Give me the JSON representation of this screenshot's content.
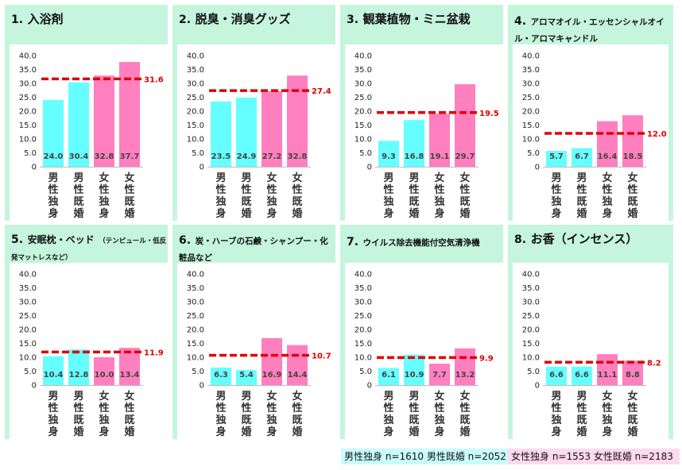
{
  "chart_data": [
    {
      "type": "bar",
      "number": "1.",
      "title": "入浴剤",
      "title_extra": "",
      "categories": [
        "男性独身",
        "男性既婚",
        "女性独身",
        "女性既婚"
      ],
      "values": [
        24.0,
        30.4,
        32.8,
        37.7
      ],
      "average": 31.6,
      "ylim": [
        0,
        40
      ],
      "yticks": [
        "40.0",
        "35.0",
        "30.0",
        "25.0",
        "20.0",
        "15.0",
        "10.0",
        "5.0",
        "0"
      ]
    },
    {
      "type": "bar",
      "number": "2.",
      "title": "脱臭・消臭グッズ",
      "title_extra": "",
      "categories": [
        "男性独身",
        "男性既婚",
        "女性独身",
        "女性既婚"
      ],
      "values": [
        23.5,
        24.9,
        27.2,
        32.8
      ],
      "average": 27.4,
      "ylim": [
        0,
        40
      ],
      "yticks": [
        "40.0",
        "35.0",
        "30.0",
        "25.0",
        "20.0",
        "15.0",
        "10.0",
        "5.0",
        "0"
      ]
    },
    {
      "type": "bar",
      "number": "3.",
      "title": "観葉植物・ミニ盆栽",
      "title_extra": "",
      "categories": [
        "男性独身",
        "男性既婚",
        "女性独身",
        "女性既婚"
      ],
      "values": [
        9.3,
        16.8,
        19.1,
        29.7
      ],
      "average": 19.5,
      "ylim": [
        0,
        40
      ],
      "yticks": [
        "40.0",
        "35.0",
        "30.0",
        "25.0",
        "20.0",
        "15.0",
        "10.0",
        "5.0",
        "0"
      ]
    },
    {
      "type": "bar",
      "number": "4.",
      "title": "アロマオイル・エッセンシャルオイル・アロマキャンドル",
      "title_extra": "",
      "categories": [
        "男性独身",
        "男性既婚",
        "女性独身",
        "女性既婚"
      ],
      "values": [
        5.7,
        6.7,
        16.4,
        18.5
      ],
      "average": 12.0,
      "ylim": [
        0,
        40
      ],
      "yticks": [
        "40.0",
        "35.0",
        "30.0",
        "25.0",
        "20.0",
        "15.0",
        "10.0",
        "5.0",
        "0"
      ]
    },
    {
      "type": "bar",
      "number": "5.",
      "title": "安眠枕・ベッド",
      "title_extra": "（テンピュール・低反発マットレスなど）",
      "categories": [
        "男性独身",
        "男性既婚",
        "女性独身",
        "女性既婚"
      ],
      "values": [
        10.4,
        12.8,
        10.0,
        13.4
      ],
      "average": 11.9,
      "ylim": [
        0,
        40
      ],
      "yticks": [
        "40.0",
        "35.0",
        "30.0",
        "25.0",
        "20.0",
        "15.0",
        "10.0",
        "5.0",
        "0"
      ]
    },
    {
      "type": "bar",
      "number": "6.",
      "title": "炭・ハーブの石鹸・シャンプー・化粧品など",
      "title_extra": "",
      "categories": [
        "男性独身",
        "男性既婚",
        "女性独身",
        "女性既婚"
      ],
      "values": [
        6.3,
        5.4,
        16.9,
        14.4
      ],
      "average": 10.7,
      "ylim": [
        0,
        40
      ],
      "yticks": [
        "40.0",
        "35.0",
        "30.0",
        "25.0",
        "20.0",
        "15.0",
        "10.0",
        "5.0",
        "0"
      ]
    },
    {
      "type": "bar",
      "number": "7.",
      "title": "ウイルス除去機能付空気清浄機",
      "title_extra": "",
      "categories": [
        "男性独身",
        "男性既婚",
        "女性独身",
        "女性既婚"
      ],
      "values": [
        6.1,
        10.9,
        7.7,
        13.2
      ],
      "average": 9.9,
      "ylim": [
        0,
        40
      ],
      "yticks": [
        "40.0",
        "35.0",
        "30.0",
        "25.0",
        "20.0",
        "15.0",
        "10.0",
        "5.0",
        "0"
      ]
    },
    {
      "type": "bar",
      "number": "8.",
      "title": "お香（インセンス）",
      "title_extra": "",
      "categories": [
        "男性独身",
        "男性既婚",
        "女性独身",
        "女性既婚"
      ],
      "values": [
        6.6,
        6.6,
        11.1,
        8.8
      ],
      "average": 8.2,
      "ylim": [
        0,
        40
      ],
      "yticks": [
        "40.0",
        "35.0",
        "30.0",
        "25.0",
        "20.0",
        "15.0",
        "10.0",
        "5.0",
        "0"
      ]
    }
  ],
  "legend": {
    "male_text": "男性独身 n=1610  男性既婚 n=2052",
    "female_text": "女性独身 n=1553  女性既婚 n=2183"
  },
  "colors": {
    "male": "#66ffff",
    "female": "#ff7fbf",
    "average_line": "#e00000",
    "panel_bg": "#c5f5dc",
    "plot_bg": "#ffffff"
  }
}
